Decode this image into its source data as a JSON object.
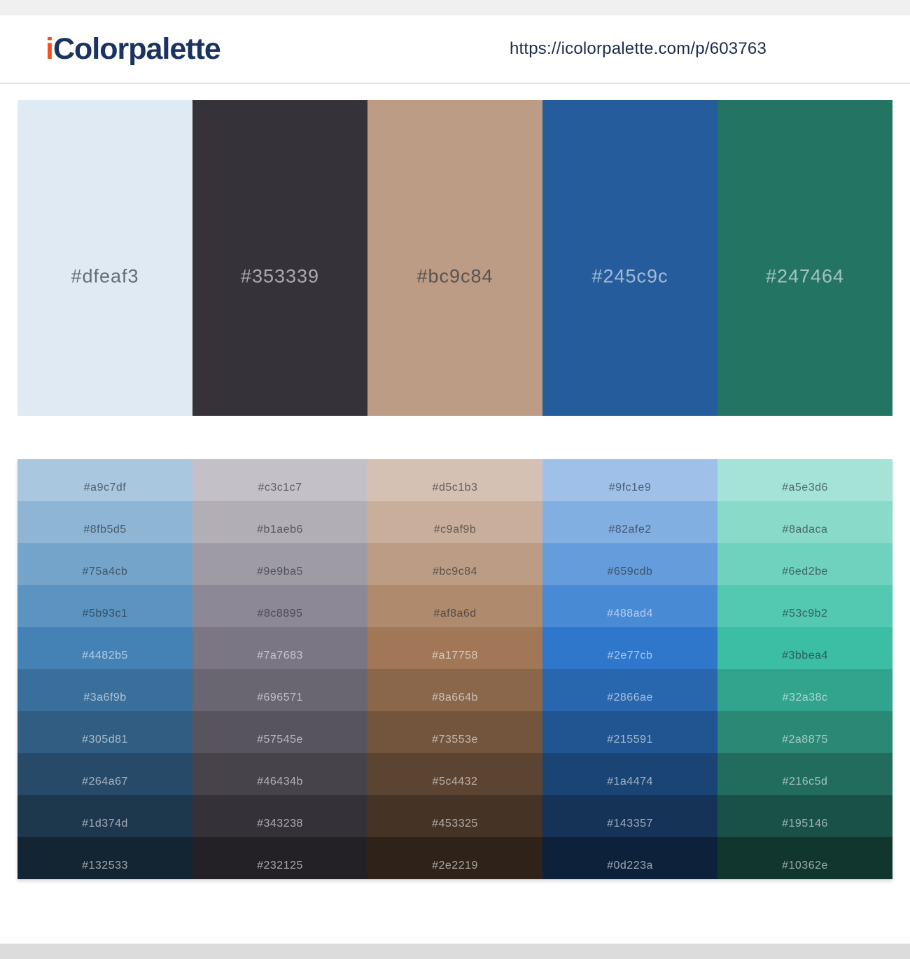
{
  "brand": {
    "prefix": "i",
    "name": "Colorpalette"
  },
  "header": {
    "url": "https://icolorpalette.com/p/603763"
  },
  "palette": {
    "colors": [
      "#dfeaf3",
      "#353339",
      "#bc9c84",
      "#245c9c",
      "#247464"
    ]
  },
  "shades": {
    "columns": [
      [
        "#a9c7df",
        "#8fb5d5",
        "#75a4cb",
        "#5b93c1",
        "#4482b5",
        "#3a6f9b",
        "#305d81",
        "#264a67",
        "#1d374d",
        "#132533"
      ],
      [
        "#c3c1c7",
        "#b1aeb6",
        "#9e9ba5",
        "#8c8895",
        "#7a7683",
        "#696571",
        "#57545e",
        "#46434b",
        "#343238",
        "#232125"
      ],
      [
        "#d5c1b3",
        "#c9af9b",
        "#bc9c84",
        "#af8a6d",
        "#a17758",
        "#8a664b",
        "#73553e",
        "#5c4432",
        "#453325",
        "#2e2219"
      ],
      [
        "#9fc1e9",
        "#82afe2",
        "#659cdb",
        "#488ad4",
        "#2e77cb",
        "#2866ae",
        "#215591",
        "#1a4474",
        "#143357",
        "#0d223a"
      ],
      [
        "#a5e3d6",
        "#8adaca",
        "#6ed2be",
        "#53c9b2",
        "#3bbea4",
        "#32a38c",
        "#2a8875",
        "#216c5d",
        "#195146",
        "#10362e"
      ]
    ]
  },
  "theme": {
    "top_strip": "#f0f0f1",
    "footer_strip": "#dcdcdc",
    "header_border": "#e2e2e2",
    "brand_orange": "#f4511e",
    "brand_navy": "#1a3360",
    "url_text": "#1b2b4d",
    "label_on_light": "rgba(38,44,50,0.66)",
    "label_on_dark": "rgba(255,255,255,0.58)"
  }
}
